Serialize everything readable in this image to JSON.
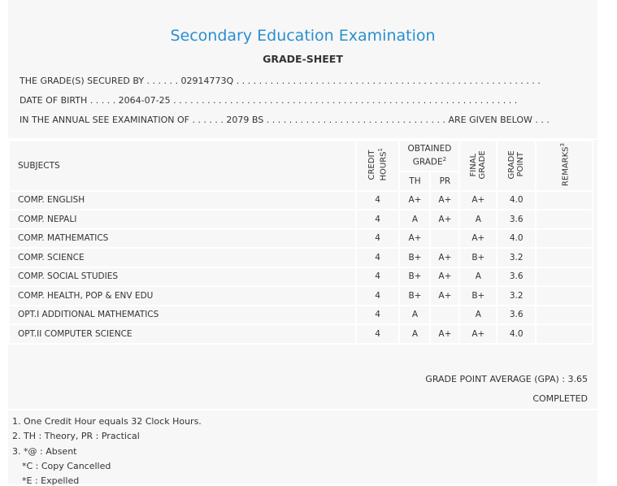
{
  "header": {
    "title": "Secondary Education Examination",
    "subtitle": "GRADE-SHEET"
  },
  "info_lines": [
    "THE GRADE(S) SECURED BY . . . . . . 02914773Q . . . . . . . . . . . . . . . . . . . . . . . . . . . . . . . . . . . . . . . . . . . . . . . . . . . . . .",
    "DATE OF BIRTH . . . . . 2064-07-25 . . . . . . . . . . . . . . . . . . . . . . . . . . . . . . . . . . . . . . . . . . . . . . . . . . . . . . . . . . . . .",
    "IN THE ANNUAL SEE EXAMINATION OF . . . . . . 2079 BS . . . . . . . . . . . . . . . . . . . . . . . . . . . . . . . . ARE GIVEN BELOW . . ."
  ],
  "table": {
    "headers": {
      "subjects": "SUBJECTS",
      "credit_hours": {
        "text": "CREDIT HOURS",
        "note": "1"
      },
      "obtained_grade": {
        "text": "OBTAINED GRADE",
        "note": "2"
      },
      "th": "TH",
      "pr": "PR",
      "final_grade": "FINAL GRADE",
      "grade_point": "GRADE POINT",
      "remarks": {
        "text": "REMARKS",
        "note": "3"
      }
    },
    "rows": [
      [
        "COMP. ENGLISH",
        "4",
        "A+",
        "A+",
        "A+",
        "4.0",
        null
      ],
      [
        "COMP. NEPALI",
        "4",
        "A",
        "A+",
        "A",
        "3.6",
        null
      ],
      [
        "COMP. MATHEMATICS",
        "4",
        "A+",
        null,
        "A+",
        "4.0",
        null
      ],
      [
        "COMP. SCIENCE",
        "4",
        "B+",
        "A+",
        "B+",
        "3.2",
        null
      ],
      [
        "COMP. SOCIAL STUDIES",
        "4",
        "B+",
        "A+",
        "A",
        "3.6",
        null
      ],
      [
        "COMP. HEALTH, POP & ENV EDU",
        "4",
        "B+",
        "A+",
        "B+",
        "3.2",
        null
      ],
      [
        "OPT.I ADDITIONAL MATHEMATICS",
        "4",
        "A",
        null,
        "A",
        "3.6",
        null
      ],
      [
        "OPT.II COMPUTER SCIENCE",
        "4",
        "A",
        "A+",
        "A+",
        "4.0",
        null
      ]
    ]
  },
  "summary": {
    "gpa": "GRADE POINT AVERAGE (GPA) : 3.65",
    "status": "COMPLETED"
  },
  "footnotes": [
    "1. One Credit Hour equals 32 Clock Hours.",
    "2. TH : Theory, PR : Practical",
    "3. *@ : Absent",
    "*C : Copy Cancelled",
    "*E : Expelled"
  ]
}
